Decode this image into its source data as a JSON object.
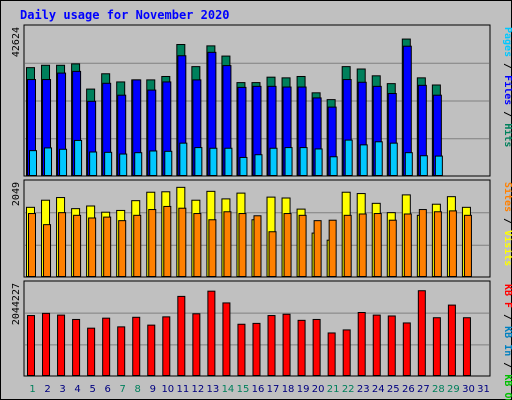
{
  "title": "Daily usage for November 2020",
  "colors": {
    "background": "#c0c0c0",
    "grid": "#808080",
    "hits": "#00805c",
    "files": "#0000ff",
    "pages": "#00c8ff",
    "visits": "#ffff00",
    "sites": "#ff8000",
    "kb_in": "#0080c0",
    "kb_out": "#00c000",
    "kb_f": "#ff0000",
    "weekend_label": "#00805c",
    "weekday_label": "#000080",
    "title": "#0000ff"
  },
  "chart_data": [
    {
      "type": "bar",
      "panel": "hits-files-pages",
      "ylabel_max": "42624",
      "ylim": [
        0,
        42624
      ],
      "categories": [
        "1",
        "2",
        "3",
        "4",
        "5",
        "6",
        "7",
        "8",
        "9",
        "10",
        "11",
        "12",
        "13",
        "14",
        "15",
        "16",
        "17",
        "18",
        "19",
        "20",
        "21",
        "22",
        "23",
        "24",
        "25",
        "26",
        "27",
        "28",
        "29",
        "30",
        "31"
      ],
      "series": [
        {
          "name": "Hits",
          "values": [
            32000,
            32700,
            32700,
            33100,
            25700,
            30200,
            27800,
            28400,
            28400,
            29400,
            38800,
            32300,
            38400,
            35400,
            27600,
            27600,
            29200,
            29000,
            29400,
            24600,
            22600,
            32300,
            31600,
            29600,
            27300,
            40400,
            29000,
            26900,
            0,
            0,
            0
          ]
        },
        {
          "name": "Files",
          "values": [
            28500,
            28500,
            30400,
            30900,
            22100,
            27400,
            23900,
            28400,
            25400,
            27800,
            35500,
            28400,
            36500,
            32600,
            26200,
            26500,
            26500,
            26300,
            26300,
            23100,
            20400,
            28500,
            27700,
            26500,
            24400,
            38300,
            26800,
            23900,
            0,
            0,
            0
          ]
        },
        {
          "name": "Pages",
          "values": [
            7600,
            8400,
            8000,
            10600,
            7200,
            7100,
            6600,
            7000,
            7500,
            7400,
            9800,
            8500,
            8300,
            8300,
            5600,
            6400,
            8300,
            8500,
            8500,
            8100,
            5800,
            10700,
            9300,
            10200,
            9800,
            7000,
            6100,
            6000,
            0,
            0,
            0
          ]
        }
      ],
      "legend": [
        "Pages",
        "Files",
        "Hits"
      ]
    },
    {
      "type": "bar",
      "panel": "visits-sites",
      "ylabel_max": "2049",
      "ylim": [
        0,
        2049
      ],
      "categories": [
        "1",
        "2",
        "3",
        "4",
        "5",
        "6",
        "7",
        "8",
        "9",
        "10",
        "11",
        "12",
        "13",
        "14",
        "15",
        "16",
        "17",
        "18",
        "19",
        "20",
        "21",
        "22",
        "23",
        "24",
        "25",
        "26",
        "27",
        "28",
        "29",
        "30",
        "31"
      ],
      "series": [
        {
          "name": "Visits",
          "values": [
            1580,
            1740,
            1800,
            1550,
            1610,
            1470,
            1510,
            1730,
            1920,
            1930,
            2030,
            1740,
            1940,
            1770,
            1900,
            1300,
            1810,
            1790,
            1540,
            1000,
            840,
            1920,
            1890,
            1670,
            1460,
            1860,
            1400,
            1650,
            1820,
            1580,
            0
          ]
        },
        {
          "name": "Sites",
          "values": [
            1440,
            1190,
            1460,
            1400,
            1340,
            1360,
            1280,
            1400,
            1530,
            1600,
            1560,
            1440,
            1300,
            1480,
            1440,
            1390,
            1030,
            1440,
            1400,
            1280,
            1290,
            1400,
            1430,
            1440,
            1290,
            1430,
            1530,
            1480,
            1500,
            1400,
            0
          ]
        }
      ],
      "legend": [
        "Sites",
        "Visits"
      ]
    },
    {
      "type": "bar",
      "panel": "kbytes",
      "ylabel_max": "2044227",
      "ylim": [
        0,
        2044227
      ],
      "categories": [
        "1",
        "2",
        "3",
        "4",
        "5",
        "6",
        "7",
        "8",
        "9",
        "10",
        "11",
        "12",
        "13",
        "14",
        "15",
        "16",
        "17",
        "18",
        "19",
        "20",
        "21",
        "22",
        "23",
        "24",
        "25",
        "26",
        "27",
        "28",
        "29",
        "30",
        "31"
      ],
      "series": [
        {
          "name": "KB F",
          "values": [
            1400000,
            1450000,
            1410000,
            1310000,
            1110000,
            1340000,
            1140000,
            1360000,
            1180000,
            1370000,
            1840000,
            1440000,
            1960000,
            1690000,
            1200000,
            1220000,
            1400000,
            1430000,
            1290000,
            1310000,
            1000000,
            1070000,
            1470000,
            1410000,
            1390000,
            1230000,
            1970000,
            1350000,
            1640000,
            1350000,
            0
          ]
        },
        {
          "name": "KB In",
          "values": [
            0,
            0,
            0,
            0,
            0,
            0,
            0,
            0,
            0,
            0,
            0,
            0,
            0,
            0,
            0,
            0,
            0,
            0,
            0,
            0,
            0,
            0,
            0,
            0,
            0,
            0,
            0,
            0,
            0,
            0,
            0
          ]
        },
        {
          "name": "KB Out",
          "values": [
            0,
            0,
            0,
            0,
            0,
            0,
            0,
            0,
            0,
            0,
            0,
            0,
            0,
            0,
            0,
            0,
            0,
            0,
            0,
            0,
            0,
            0,
            0,
            0,
            0,
            0,
            0,
            0,
            0,
            0,
            0
          ]
        }
      ],
      "legend": [
        "KB F",
        "KB In",
        "KB Out"
      ]
    }
  ],
  "x_labels": [
    {
      "text": "1",
      "weekend": true
    },
    {
      "text": "2",
      "weekend": false
    },
    {
      "text": "3",
      "weekend": false
    },
    {
      "text": "4",
      "weekend": false
    },
    {
      "text": "5",
      "weekend": false
    },
    {
      "text": "6",
      "weekend": false
    },
    {
      "text": "7",
      "weekend": true
    },
    {
      "text": "8",
      "weekend": true
    },
    {
      "text": "9",
      "weekend": false
    },
    {
      "text": "10",
      "weekend": false
    },
    {
      "text": "11",
      "weekend": false
    },
    {
      "text": "12",
      "weekend": false
    },
    {
      "text": "13",
      "weekend": false
    },
    {
      "text": "14",
      "weekend": true
    },
    {
      "text": "15",
      "weekend": true
    },
    {
      "text": "16",
      "weekend": false
    },
    {
      "text": "17",
      "weekend": false
    },
    {
      "text": "18",
      "weekend": false
    },
    {
      "text": "19",
      "weekend": false
    },
    {
      "text": "20",
      "weekend": false
    },
    {
      "text": "21",
      "weekend": true
    },
    {
      "text": "22",
      "weekend": true
    },
    {
      "text": "23",
      "weekend": false
    },
    {
      "text": "24",
      "weekend": false
    },
    {
      "text": "25",
      "weekend": false
    },
    {
      "text": "26",
      "weekend": false
    },
    {
      "text": "27",
      "weekend": false
    },
    {
      "text": "28",
      "weekend": true
    },
    {
      "text": "29",
      "weekend": true
    },
    {
      "text": "30",
      "weekend": false
    },
    {
      "text": "31",
      "weekend": false
    }
  ],
  "right_legends": [
    [
      {
        "text": "Pages",
        "color": "#00c8ff"
      },
      {
        "text": " / ",
        "color": "#000000"
      },
      {
        "text": "Files",
        "color": "#0000ff"
      },
      {
        "text": " / ",
        "color": "#000000"
      },
      {
        "text": "Hits",
        "color": "#00805c"
      }
    ],
    [
      {
        "text": "Sites",
        "color": "#ff8000"
      },
      {
        "text": " / ",
        "color": "#000000"
      },
      {
        "text": "Visits",
        "color": "#ffff00"
      }
    ],
    [
      {
        "text": "KB F",
        "color": "#ff0000"
      },
      {
        "text": " / ",
        "color": "#000000"
      },
      {
        "text": "KB In",
        "color": "#0080c0"
      },
      {
        "text": " / ",
        "color": "#000000"
      },
      {
        "text": "KB Out",
        "color": "#00c000"
      }
    ]
  ]
}
